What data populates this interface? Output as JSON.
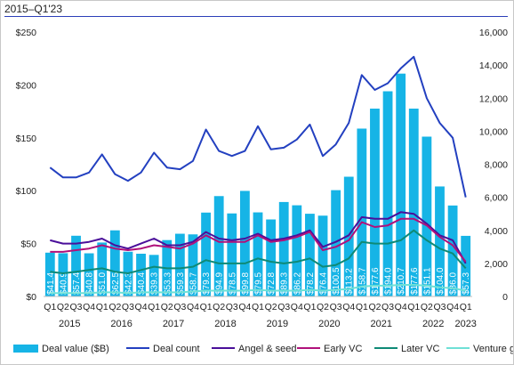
{
  "subtitle": "2015–Q1'23",
  "chart_data": {
    "type": "bar",
    "quarters": [
      "Q1",
      "Q2",
      "Q3",
      "Q4",
      "Q1",
      "Q2",
      "Q3",
      "Q4",
      "Q1",
      "Q2",
      "Q3",
      "Q4",
      "Q1",
      "Q2",
      "Q3",
      "Q4",
      "Q1",
      "Q2",
      "Q3",
      "Q4",
      "Q1",
      "Q2",
      "Q3",
      "Q4",
      "Q1",
      "Q2",
      "Q3",
      "Q4",
      "Q1",
      "Q2",
      "Q3",
      "Q4",
      "Q1"
    ],
    "years": [
      "2015",
      "2016",
      "2017",
      "2018",
      "2019",
      "2020",
      "2021",
      "2022",
      "2023"
    ],
    "left_axis": {
      "ticks": [
        "$0",
        "$50",
        "$100",
        "$150",
        "$200",
        "$250"
      ],
      "ylim": [
        0,
        250
      ]
    },
    "right_axis": {
      "ticks": [
        "0",
        "2,000",
        "4,000",
        "6,000",
        "8,000",
        "10,000",
        "12,000",
        "14,000",
        "16,000"
      ],
      "ylim": [
        0,
        16000
      ]
    },
    "grid": false,
    "legend_position": "bottom",
    "series": [
      {
        "name": "Deal value ($B)",
        "type": "bar",
        "axis": "left",
        "color": "#16b4e6",
        "values": [
          41.4,
          40.9,
          57.4,
          40.8,
          51.0,
          62.5,
          42.3,
          40.4,
          39.3,
          53.3,
          59.3,
          58.7,
          79.3,
          94.9,
          78.5,
          99.8,
          79.5,
          72.8,
          89.3,
          86.2,
          78.2,
          76.4,
          100.5,
          113.2,
          158.7,
          177.6,
          194.0,
          210.7,
          177.6,
          151.1,
          104.0,
          86.0,
          57.3
        ],
        "labels": [
          "$41.4",
          "$40.9",
          "$57.4",
          "$40.8",
          "$51.0",
          "$62.5",
          "$42.3",
          "$40.4",
          "$39.3",
          "$53.3",
          "$59.3",
          "$58.7",
          "$79.3",
          "$94.9",
          "$78.5",
          "$99.8",
          "$79.5",
          "$72.8",
          "$89.3",
          "$86.2",
          "$78.2",
          "$76.4",
          "$100.5",
          "$113.2",
          "$158.7",
          "$177.6",
          "$194.0",
          "$210.7",
          "$177.6",
          "$151.1",
          "$104.0",
          "$86.0",
          "$57.3"
        ]
      },
      {
        "name": "Deal count",
        "type": "line",
        "axis": "right",
        "color": "#2340c0",
        "values": [
          7800,
          7200,
          7200,
          7500,
          8600,
          7400,
          7000,
          7500,
          8700,
          7800,
          7700,
          8200,
          10100,
          8800,
          8500,
          8800,
          10300,
          8900,
          9000,
          9500,
          10400,
          8500,
          9200,
          10500,
          13400,
          12500,
          12900,
          13800,
          14500,
          12000,
          10500,
          9600,
          6000
        ]
      },
      {
        "name": "Angel & seed",
        "type": "line",
        "axis": "right",
        "color": "#4a0f9a",
        "values": [
          3400,
          3200,
          3200,
          3300,
          3500,
          3100,
          2900,
          3200,
          3500,
          3100,
          3100,
          3300,
          3900,
          3500,
          3400,
          3500,
          3800,
          3400,
          3500,
          3700,
          4000,
          3000,
          3300,
          3700,
          4800,
          4700,
          4700,
          5100,
          5000,
          4400,
          3700,
          3400,
          2000
        ]
      },
      {
        "name": "Early VC",
        "type": "line",
        "axis": "right",
        "color": "#b0117a",
        "values": [
          2700,
          2700,
          2800,
          2900,
          3100,
          2900,
          2800,
          2900,
          3100,
          3000,
          2900,
          3200,
          3700,
          3300,
          3300,
          3300,
          3700,
          3300,
          3400,
          3600,
          3900,
          2800,
          3000,
          3400,
          4500,
          4200,
          4300,
          4700,
          4700,
          4300,
          3600,
          3100,
          2100
        ]
      },
      {
        "name": "Later VC",
        "type": "line",
        "axis": "right",
        "color": "#0e8a76",
        "values": [
          1500,
          1400,
          1500,
          1600,
          1700,
          1500,
          1400,
          1600,
          1800,
          1700,
          1700,
          1800,
          2200,
          2000,
          2000,
          2000,
          2300,
          2100,
          2000,
          2100,
          2300,
          1800,
          1900,
          2300,
          3300,
          3200,
          3200,
          3400,
          4000,
          3400,
          2900,
          2600,
          1700
        ]
      },
      {
        "name": "Venture growth",
        "type": "line",
        "axis": "right",
        "color": "#6fe0d6",
        "values": [
          200,
          200,
          200,
          200,
          250,
          250,
          200,
          250,
          250,
          250,
          250,
          300,
          350,
          350,
          350,
          350,
          400,
          350,
          350,
          350,
          400,
          350,
          400,
          450,
          600,
          650,
          650,
          700,
          700,
          650,
          550,
          500,
          350
        ]
      }
    ]
  }
}
